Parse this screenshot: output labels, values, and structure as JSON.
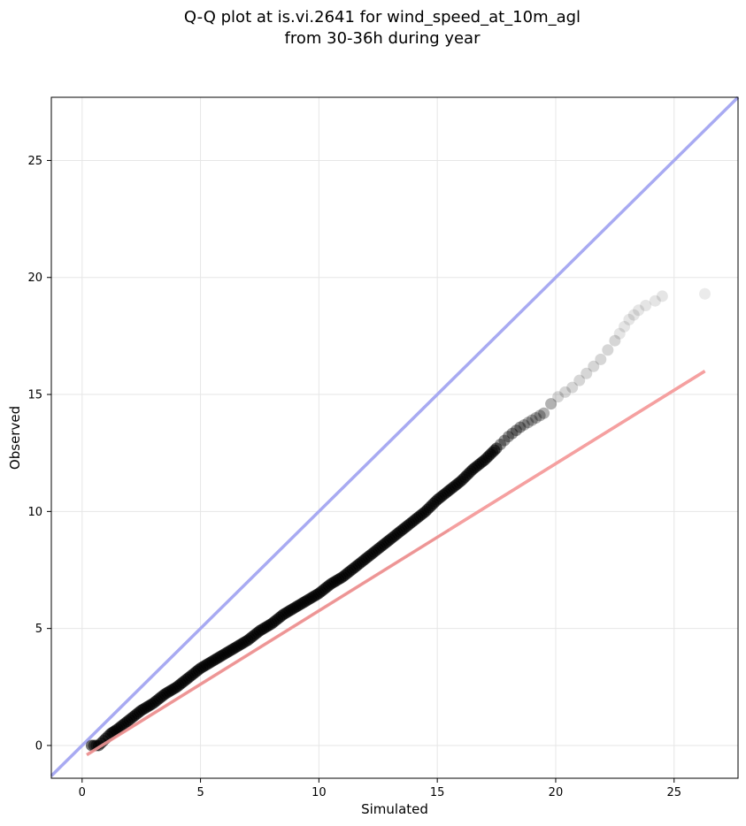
{
  "chart_data": {
    "type": "scatter",
    "title": "Q-Q plot at is.vi.2641 for wind_speed_at_10m_agl",
    "subtitle": "from 30-36h during year",
    "xlabel": "Simulated",
    "ylabel": "Observed",
    "xlim": [
      -1.3,
      27.7
    ],
    "ylim": [
      -1.4,
      27.7
    ],
    "xticks": [
      0,
      5,
      10,
      15,
      20,
      25
    ],
    "yticks": [
      0,
      5,
      10,
      15,
      20,
      25
    ],
    "grid": true,
    "series": [
      {
        "kind": "points",
        "color": "#000000",
        "x": [
          0.4,
          0.5,
          0.6,
          0.7,
          0.8,
          1.0,
          1.2,
          1.5,
          2.0,
          2.5,
          3.0,
          3.5,
          4.0,
          4.5,
          5.0,
          5.5,
          6.0,
          6.5,
          7.0,
          7.5,
          8.0,
          8.5,
          9.0,
          9.5,
          10.0,
          10.5,
          11.0,
          11.5,
          12.0,
          12.5,
          13.0,
          13.5,
          14.0,
          14.5,
          15.0,
          15.5,
          16.0,
          16.5,
          17.0,
          17.5,
          18.0,
          18.5,
          19.0,
          19.5,
          19.8,
          20.1,
          20.4,
          20.7,
          21.0,
          21.3,
          21.6,
          21.9,
          22.2,
          22.5,
          22.7,
          22.9,
          23.1,
          23.3,
          23.5,
          23.8,
          24.2,
          24.5,
          26.3
        ],
        "y": [
          0.0,
          0.0,
          0.0,
          0.0,
          0.1,
          0.3,
          0.5,
          0.7,
          1.1,
          1.5,
          1.8,
          2.2,
          2.5,
          2.9,
          3.3,
          3.6,
          3.9,
          4.2,
          4.5,
          4.9,
          5.2,
          5.6,
          5.9,
          6.2,
          6.5,
          6.9,
          7.2,
          7.6,
          8.0,
          8.4,
          8.8,
          9.2,
          9.6,
          10.0,
          10.5,
          10.9,
          11.3,
          11.8,
          12.2,
          12.7,
          13.2,
          13.6,
          13.9,
          14.2,
          14.6,
          14.9,
          15.1,
          15.3,
          15.6,
          15.9,
          16.2,
          16.5,
          16.9,
          17.3,
          17.6,
          17.9,
          18.2,
          18.4,
          18.6,
          18.8,
          19.0,
          19.2,
          19.3
        ]
      },
      {
        "kind": "fit-line",
        "color": "#f4a0a0",
        "x": [
          0.2,
          26.3
        ],
        "y": [
          -0.4,
          16.0
        ]
      },
      {
        "kind": "identity-line",
        "color": "#a8aaf2",
        "x": [
          -1.3,
          27.7
        ],
        "y": [
          -1.3,
          27.7
        ]
      }
    ]
  }
}
